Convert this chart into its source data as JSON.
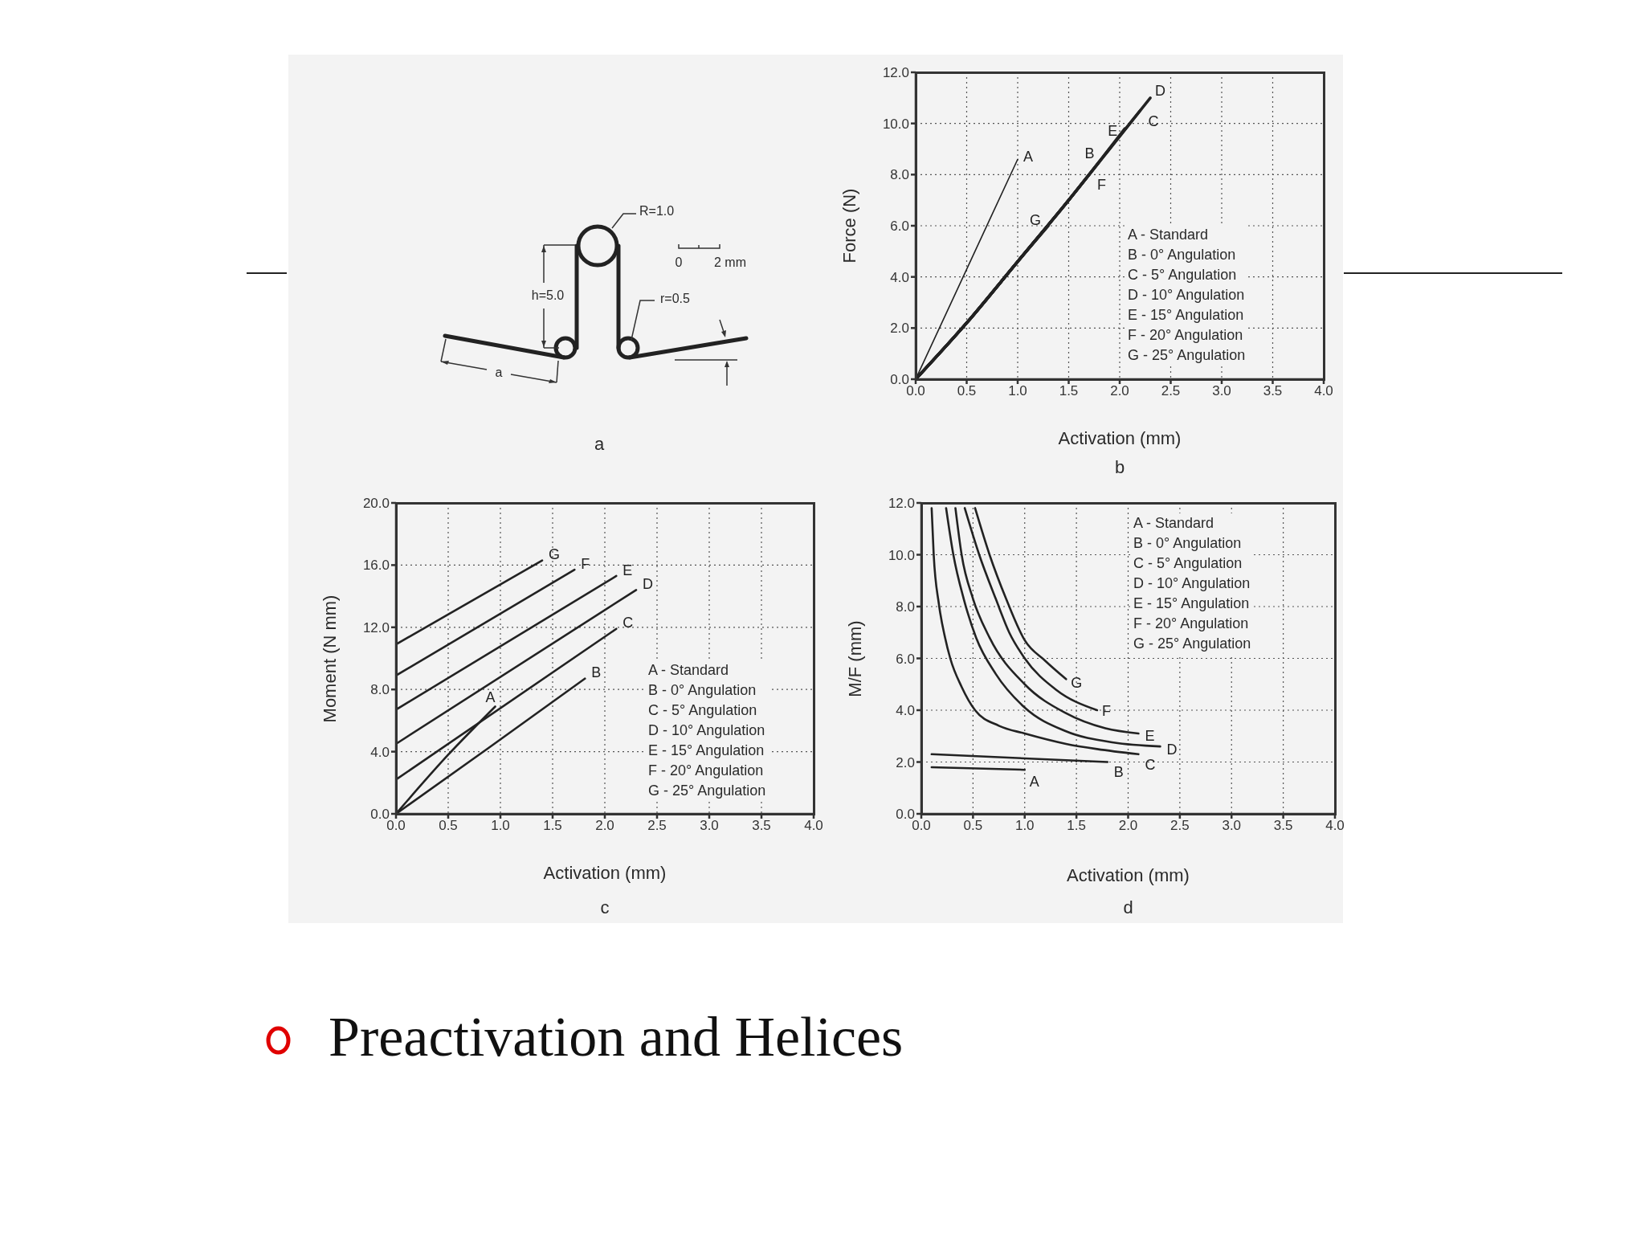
{
  "chart_data": [
    {
      "type": "other",
      "title": "a",
      "annotations": [
        "R=1.0",
        "0",
        "2 mm",
        "h=5.0",
        "r=0.5",
        "a"
      ]
    },
    {
      "type": "line",
      "title": "b",
      "xlabel": "Activation (mm)",
      "ylabel": "Force (N)",
      "annotations": [
        "A - Standard",
        "B - 0° Angulation",
        "C - 5° Angulation",
        "D - 10° Angulation",
        "E - 15° Angulation",
        "F - 20° Angulation",
        "G - 25° Angulation"
      ],
      "xlim": [
        0,
        4
      ],
      "ylim": [
        0,
        12
      ],
      "xticks": [
        {
          "value": 0,
          "label": "0.0"
        },
        0.5,
        {
          "value": 1,
          "label": "1.0"
        },
        1.5,
        {
          "value": 2,
          "label": "2.0"
        },
        2.5,
        {
          "value": 3,
          "label": "3.0"
        },
        3.5,
        {
          "value": 4,
          "label": "4.0"
        }
      ],
      "yticks": [
        {
          "value": 0,
          "label": "0.0"
        },
        {
          "value": 2,
          "label": "2.0"
        },
        {
          "value": 4,
          "label": "4.0"
        },
        {
          "value": 6,
          "label": "6.0"
        },
        {
          "value": 8,
          "label": "8.0"
        },
        {
          "value": 10,
          "label": "10.0"
        },
        {
          "value": 12,
          "label": "12.0"
        }
      ],
      "grid": true,
      "marker": "none",
      "series": [
        {
          "name": "A",
          "color": "#222222",
          "x": [
            0,
            0.5,
            1.0
          ],
          "values": [
            0,
            4.3,
            8.6
          ]
        },
        {
          "name": "B",
          "color": "#222222",
          "x": [
            0,
            0.5,
            1.0,
            1.5,
            1.8
          ],
          "values": [
            0,
            2.2,
            4.6,
            7.0,
            8.5
          ]
        },
        {
          "name": "C",
          "color": "#222222",
          "x": [
            0,
            0.5,
            1.0,
            1.5,
            2.0,
            2.2
          ],
          "values": [
            0,
            2.2,
            4.6,
            7.0,
            9.5,
            10.5
          ]
        },
        {
          "name": "D",
          "color": "#222222",
          "x": [
            0,
            0.5,
            1.0,
            1.5,
            2.0,
            2.3
          ],
          "values": [
            0,
            2.2,
            4.6,
            7.0,
            9.5,
            11.0
          ]
        },
        {
          "name": "E",
          "color": "#222222",
          "x": [
            0,
            0.5,
            1.0,
            1.5,
            2.05
          ],
          "values": [
            0,
            2.2,
            4.6,
            7.0,
            9.8
          ]
        },
        {
          "name": "F",
          "color": "#222222",
          "x": [
            0,
            0.5,
            1.0,
            1.5,
            1.7
          ],
          "values": [
            0,
            2.2,
            4.6,
            7.0,
            8.0
          ]
        },
        {
          "name": "G",
          "color": "#222222",
          "x": [
            0,
            0.5,
            1.0,
            1.3
          ],
          "values": [
            0,
            2.2,
            4.6,
            6.0
          ]
        }
      ]
    },
    {
      "type": "line",
      "title": "c",
      "xlabel": "Activation (mm)",
      "ylabel": "Moment (N mm)",
      "annotations": [
        "A - Standard",
        "B - 0° Angulation",
        "C - 5° Angulation",
        "D - 10° Angulation",
        "E - 15° Angulation",
        "F - 20° Angulation",
        "G - 25° Angulation"
      ],
      "xlim": [
        0,
        4
      ],
      "ylim": [
        0,
        20
      ],
      "xticks": [
        {
          "value": 0,
          "label": "0.0"
        },
        0.5,
        {
          "value": 1,
          "label": "1.0"
        },
        1.5,
        {
          "value": 2,
          "label": "2.0"
        },
        2.5,
        {
          "value": 3,
          "label": "3.0"
        },
        3.5,
        {
          "value": 4,
          "label": "4.0"
        }
      ],
      "yticks": [
        {
          "value": 0,
          "label": "0.0"
        },
        {
          "value": 4,
          "label": "4.0"
        },
        {
          "value": 8,
          "label": "8.0"
        },
        {
          "value": 12,
          "label": "12.0"
        },
        {
          "value": 16,
          "label": "16.0"
        },
        {
          "value": 20,
          "label": "20.0"
        }
      ],
      "grid": true,
      "marker": "none",
      "series": [
        {
          "name": "A",
          "color": "#222222",
          "x": [
            0,
            0.5,
            0.95
          ],
          "values": [
            0,
            3.8,
            6.9
          ]
        },
        {
          "name": "B",
          "color": "#222222",
          "x": [
            0,
            0.9,
            1.81
          ],
          "values": [
            0,
            4.3,
            8.7
          ]
        },
        {
          "name": "C",
          "color": "#222222",
          "x": [
            0,
            2.11
          ],
          "values": [
            2.2,
            11.9
          ]
        },
        {
          "name": "D",
          "color": "#222222",
          "x": [
            0,
            2.3
          ],
          "values": [
            4.5,
            14.4
          ]
        },
        {
          "name": "E",
          "color": "#222222",
          "x": [
            0,
            2.11
          ],
          "values": [
            6.7,
            15.3
          ]
        },
        {
          "name": "F",
          "color": "#222222",
          "x": [
            0,
            1.71
          ],
          "values": [
            8.9,
            15.7
          ]
        },
        {
          "name": "G",
          "color": "#222222",
          "x": [
            0,
            1.4
          ],
          "values": [
            10.9,
            16.3
          ]
        }
      ]
    },
    {
      "type": "line",
      "title": "d",
      "xlabel": "Activation (mm)",
      "ylabel": "M/F (mm)",
      "annotations": [
        "A - Standard",
        "B - 0° Angulation",
        "C - 5° Angulation",
        "D - 10° Angulation",
        "E - 15° Angulation",
        "F - 20° Angulation",
        "G - 25° Angulation"
      ],
      "xlim": [
        0,
        4
      ],
      "ylim": [
        0,
        12
      ],
      "xticks": [
        {
          "value": 0,
          "label": "0.0"
        },
        0.5,
        {
          "value": 1,
          "label": "1.0"
        },
        1.5,
        {
          "value": 2,
          "label": "2.0"
        },
        2.5,
        {
          "value": 3,
          "label": "3.0"
        },
        3.5,
        {
          "value": 4,
          "label": "4.0"
        }
      ],
      "yticks": [
        {
          "value": 0,
          "label": "0.0"
        },
        {
          "value": 2,
          "label": "2.0"
        },
        {
          "value": 4,
          "label": "4.0"
        },
        {
          "value": 6,
          "label": "6.0"
        },
        {
          "value": 8,
          "label": "8.0"
        },
        {
          "value": 10,
          "label": "10.0"
        },
        {
          "value": 12,
          "label": "12.0"
        }
      ],
      "grid": true,
      "marker": "none",
      "series": [
        {
          "name": "A",
          "color": "#222222",
          "x": [
            0.1,
            1.0
          ],
          "values": [
            1.8,
            1.7
          ]
        },
        {
          "name": "B",
          "color": "#222222",
          "x": [
            0.1,
            1.8
          ],
          "values": [
            2.3,
            2.0
          ]
        },
        {
          "name": "C",
          "color": "#222222",
          "x": [
            0.1,
            0.12,
            0.17,
            0.23,
            0.28,
            0.39,
            0.52,
            0.75,
            1.0,
            1.4,
            1.7,
            2.1
          ],
          "values": [
            11.8,
            10.0,
            8.1,
            6.8,
            6.0,
            4.9,
            4.0,
            3.4,
            3.1,
            2.7,
            2.5,
            2.3
          ]
        },
        {
          "name": "D",
          "color": "#222222",
          "x": [
            0.24,
            0.31,
            0.41,
            0.53,
            0.72,
            1.0,
            1.39,
            1.86,
            2.31
          ],
          "values": [
            11.8,
            10.0,
            8.3,
            6.8,
            5.4,
            4.1,
            3.2,
            2.75,
            2.6
          ]
        },
        {
          "name": "E",
          "color": "#222222",
          "x": [
            0.33,
            0.39,
            0.5,
            0.66,
            1.0,
            1.39,
            1.78,
            2.1
          ],
          "values": [
            11.8,
            10.0,
            8.3,
            6.8,
            5.0,
            3.9,
            3.3,
            3.1
          ]
        },
        {
          "name": "F",
          "color": "#222222",
          "x": [
            0.42,
            0.56,
            0.72,
            0.85,
            1.0,
            1.3,
            1.7
          ],
          "values": [
            11.8,
            10.0,
            8.3,
            7.0,
            6.0,
            4.8,
            4.0
          ]
        },
        {
          "name": "G",
          "color": "#222222",
          "x": [
            0.52,
            0.66,
            0.82,
            1.0,
            1.2,
            1.4
          ],
          "values": [
            11.8,
            10.0,
            8.3,
            6.7,
            5.9,
            5.2
          ]
        }
      ]
    },
    {
      "type": "other",
      "title": "Preactivation and Helices"
    }
  ]
}
